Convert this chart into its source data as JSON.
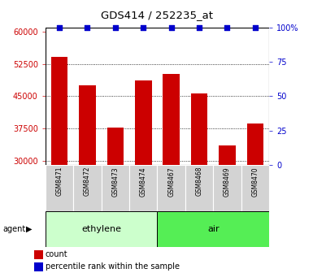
{
  "title": "GDS414 / 252235_at",
  "categories": [
    "GSM8471",
    "GSM8472",
    "GSM8473",
    "GSM8474",
    "GSM8467",
    "GSM8468",
    "GSM8469",
    "GSM8470"
  ],
  "bar_values": [
    54200,
    47500,
    37800,
    48700,
    50200,
    45700,
    33500,
    38700
  ],
  "percentile_values": [
    100,
    100,
    100,
    100,
    100,
    100,
    100,
    100
  ],
  "bar_color": "#cc0000",
  "percentile_color": "#0000cc",
  "ylim_left": [
    29000,
    61000
  ],
  "ylim_right": [
    0,
    100
  ],
  "yticks_left": [
    30000,
    37500,
    45000,
    52500,
    60000
  ],
  "ytick_labels_left": [
    "30000",
    "37500",
    "45000",
    "52500",
    "60000"
  ],
  "yticks_right": [
    0,
    25,
    50,
    75,
    100
  ],
  "ytick_labels_right": [
    "0",
    "25",
    "50",
    "75",
    "100%"
  ],
  "group1_label": "ethylene",
  "group2_label": "air",
  "group1_indices": [
    0,
    1,
    2,
    3
  ],
  "group2_indices": [
    4,
    5,
    6,
    7
  ],
  "group1_color": "#ccffcc",
  "group2_color": "#55ee55",
  "agent_label": "agent",
  "legend_bar_label": "count",
  "legend_dot_label": "percentile rank within the sample",
  "grid_color": "black",
  "tick_label_color_left": "#cc0000",
  "tick_label_color_right": "#0000cc",
  "bar_bottom": 29000,
  "figsize": [
    3.85,
    3.36
  ],
  "dpi": 100
}
